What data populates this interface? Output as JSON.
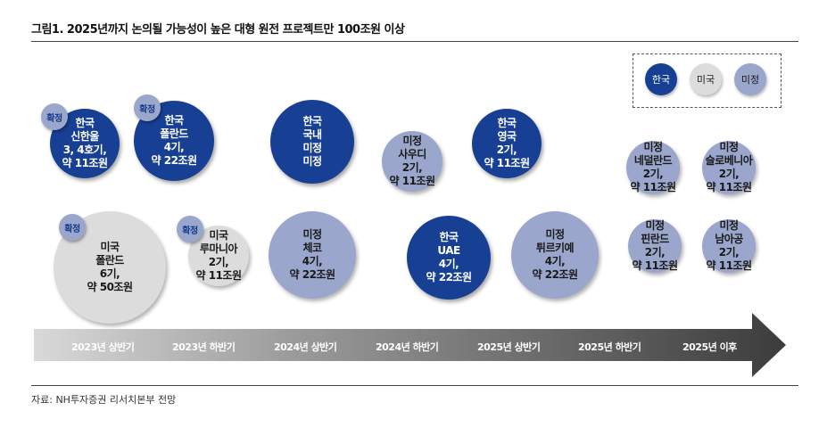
{
  "title": "그림1. 2025년까지 논의될 가능성이 높은 대형 원전 프로젝트만 100조원 이상",
  "source": "자료: NH투자증권 리서치본부 전망",
  "legend": [
    {
      "label": "한국",
      "color": "#173f94"
    },
    {
      "label": "미국",
      "color": "#dcdcdc"
    },
    {
      "label": "미정",
      "color": "#9aa6cc"
    }
  ],
  "badge_label": "확정",
  "timeline": [
    "2023년 상반기",
    "2023년 하반기",
    "2024년 상반기",
    "2024년 하반기",
    "2025년 상반기",
    "2025년 하반기",
    "2025년 이후"
  ],
  "projects": [
    {
      "lines": [
        "한국",
        "신한울",
        "3, 4호기,",
        "약 11조원"
      ],
      "type": "kr",
      "confirmed": true
    },
    {
      "lines": [
        "한국",
        "폴란드",
        "4기,",
        "약 22조원"
      ],
      "type": "kr",
      "confirmed": true
    },
    {
      "lines": [
        "한국",
        "국내",
        "미정",
        "미정"
      ],
      "type": "kr",
      "confirmed": false
    },
    {
      "lines": [
        "미정",
        "사우디",
        "2기,",
        "약 11조원"
      ],
      "type": "tbd",
      "confirmed": false
    },
    {
      "lines": [
        "한국",
        "영국",
        "2기,",
        "약 11조원"
      ],
      "type": "kr",
      "confirmed": false
    },
    {
      "lines": [
        "미정",
        "네덜란드",
        "2기,",
        "약 11조원"
      ],
      "type": "tbd",
      "confirmed": false
    },
    {
      "lines": [
        "미정",
        "슬로베니아",
        "2기,",
        "약 11조원"
      ],
      "type": "tbd",
      "confirmed": false
    },
    {
      "lines": [
        "미국",
        "폴란드",
        "6기,",
        "약 50조원"
      ],
      "type": "us",
      "confirmed": true
    },
    {
      "lines": [
        "미국",
        "루마니아",
        "2기,",
        "약 11조원"
      ],
      "type": "us",
      "confirmed": true
    },
    {
      "lines": [
        "미정",
        "체코",
        "4기,",
        "약 22조원"
      ],
      "type": "tbd",
      "confirmed": false
    },
    {
      "lines": [
        "한국",
        "UAE",
        "4기,",
        "약 22조원"
      ],
      "type": "kr",
      "confirmed": false
    },
    {
      "lines": [
        "미정",
        "튀르키예",
        "4기,",
        "약 22조원"
      ],
      "type": "tbd",
      "confirmed": false
    },
    {
      "lines": [
        "미정",
        "핀란드",
        "2기,",
        "약 11조원"
      ],
      "type": "tbd",
      "confirmed": false
    },
    {
      "lines": [
        "미정",
        "남아공",
        "2기,",
        "약 11조원"
      ],
      "type": "tbd",
      "confirmed": false
    }
  ]
}
